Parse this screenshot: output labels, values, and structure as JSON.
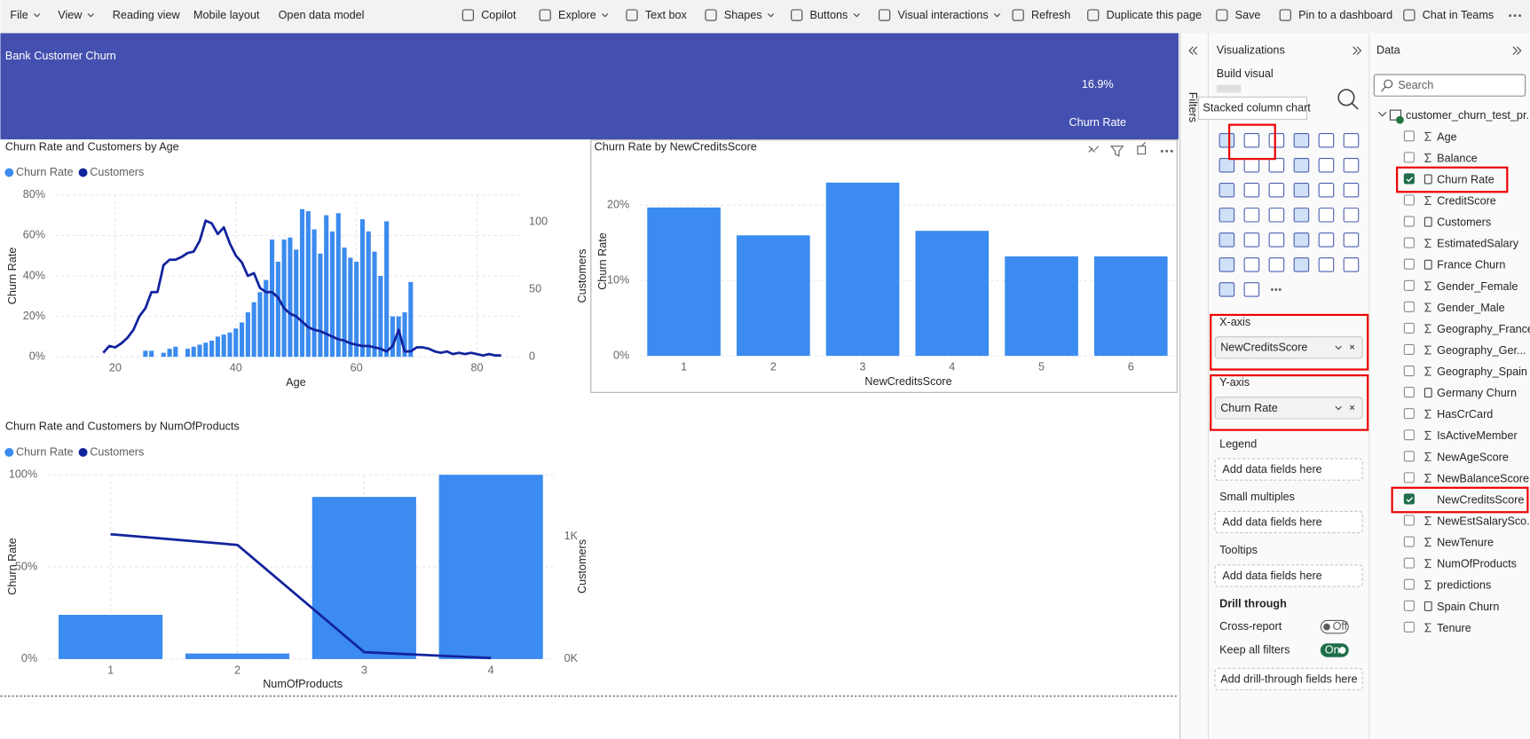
{
  "toolbar": [
    {
      "label": "File",
      "dropdown": true
    },
    {
      "label": "View",
      "dropdown": true
    },
    {
      "label": "Reading view",
      "dropdown": false
    },
    {
      "label": "Mobile layout",
      "dropdown": false
    },
    {
      "label": "Open data model",
      "dropdown": false
    },
    {
      "label": "Copilot",
      "dropdown": false
    },
    {
      "label": "Explore",
      "dropdown": true
    },
    {
      "label": "Text box",
      "dropdown": false
    },
    {
      "label": "Shapes",
      "dropdown": true
    },
    {
      "label": "Buttons",
      "dropdown": true
    },
    {
      "label": "Visual interactions",
      "dropdown": true
    },
    {
      "label": "Refresh",
      "dropdown": false
    },
    {
      "label": "Duplicate this page",
      "dropdown": false
    },
    {
      "label": "Save",
      "dropdown": false
    },
    {
      "label": "Pin to a dashboard",
      "dropdown": false
    },
    {
      "label": "Chat in Teams",
      "dropdown": false
    }
  ],
  "report": {
    "title": "Bank Customer Churn",
    "kpi": {
      "value": "16.9%",
      "label": "Churn Rate"
    }
  },
  "visuals": [
    {
      "type": "combo",
      "title": "Churn Rate and Customers by Age",
      "legend": true,
      "xgrid": true,
      "x": [
        18,
        19,
        20,
        21,
        22,
        23,
        24,
        25,
        26,
        27,
        28,
        29,
        30,
        31,
        32,
        33,
        34,
        35,
        36,
        37,
        38,
        39,
        40,
        41,
        42,
        43,
        44,
        45,
        46,
        47,
        48,
        49,
        50,
        51,
        52,
        53,
        54,
        55,
        56,
        57,
        58,
        59,
        60,
        61,
        62,
        63,
        64,
        65,
        66,
        67,
        68,
        69,
        70,
        71,
        72,
        73,
        74,
        75,
        76,
        77,
        78,
        79,
        80,
        81,
        82,
        83,
        84
      ],
      "xlim": [
        10,
        87
      ],
      "xticks": [
        20,
        40,
        60,
        80
      ],
      "ylim": [
        0,
        80
      ],
      "yticks": [
        {
          "value": 0,
          "label": "0%"
        },
        {
          "value": 20,
          "label": "20%"
        },
        {
          "value": 40,
          "label": "40%"
        },
        {
          "value": 60,
          "label": "60%"
        },
        {
          "value": 80,
          "label": "80%"
        }
      ],
      "y2lim": [
        0,
        120
      ],
      "y2ticks": [
        0,
        50,
        100
      ],
      "x_label": "Age",
      "y_label": "Churn Rate",
      "y2_label": "Customers",
      "series": [
        {
          "name": "Churn Rate",
          "color": "#3b8bf0",
          "type": "bar",
          "values": [
            null,
            null,
            null,
            null,
            null,
            null,
            null,
            3,
            3,
            null,
            2,
            4,
            5,
            null,
            4,
            5,
            6,
            7,
            8,
            10,
            11,
            12,
            14,
            17,
            22,
            27,
            32,
            38,
            58,
            47,
            58,
            59,
            53,
            73,
            72,
            63,
            51,
            70,
            62,
            71,
            54,
            49,
            47,
            68,
            62,
            52,
            40,
            67,
            20,
            20,
            22,
            37,
            null,
            null,
            null,
            null,
            null,
            null,
            null,
            null,
            null,
            null,
            null,
            null,
            null,
            null,
            null
          ]
        },
        {
          "name": "Customers",
          "color": "#12239e",
          "type": "line",
          "axis": "y2",
          "values": [
            3,
            8,
            7,
            10,
            14,
            20,
            30,
            36,
            48,
            48,
            68,
            72,
            72,
            74,
            77,
            78,
            86,
            101,
            99,
            91,
            96,
            84,
            75,
            70,
            60,
            62,
            51,
            48,
            48,
            44,
            36,
            32,
            30,
            26,
            22,
            20,
            19,
            17,
            15,
            13,
            12,
            10,
            9,
            8,
            8,
            7,
            6,
            4,
            8,
            20,
            4,
            4,
            7,
            7,
            6,
            4,
            3,
            4,
            2,
            3,
            2,
            3,
            2,
            1,
            2,
            1,
            1
          ]
        }
      ]
    },
    {
      "type": "bar",
      "title": "Churn Rate by NewCreditsScore",
      "categories": [
        "1",
        "2",
        "3",
        "4",
        "5",
        "6"
      ],
      "values": [
        19.7,
        16.0,
        23.0,
        16.6,
        13.2,
        13.2
      ],
      "color": "#3b8bf0",
      "ylim": [
        0,
        23.3
      ],
      "yticks": [
        {
          "value": 0,
          "label": "0%"
        },
        {
          "value": 10,
          "label": "10%"
        },
        {
          "value": 20,
          "label": "20%"
        }
      ],
      "x_label": "NewCreditsScore",
      "y_label": "Churn Rate"
    },
    {
      "type": "combo",
      "title": "Churn Rate and Customers by NumOfProducts",
      "legend": true,
      "xgrid": true,
      "categories": [
        "1",
        "2",
        "3",
        "4"
      ],
      "ylim": [
        0,
        100
      ],
      "yticks": [
        {
          "value": 0,
          "label": "0%"
        },
        {
          "value": 50,
          "label": "50%"
        },
        {
          "value": 100,
          "label": "100%"
        }
      ],
      "y2lim": [
        0,
        1500
      ],
      "y2ticks": [
        {
          "value": 0,
          "label": "0K"
        },
        {
          "value": 1000,
          "label": "1K"
        }
      ],
      "x_label": "NumOfProducts",
      "y_label": "Churn Rate",
      "y2_label": "Customers",
      "series": [
        {
          "name": "Churn Rate",
          "color": "#3b8bf0",
          "type": "bar",
          "values": [
            24,
            3,
            88,
            100
          ]
        },
        {
          "name": "Customers",
          "color": "#12239e",
          "type": "line",
          "axis": "y2",
          "values": [
            1016,
            929,
            56,
            8
          ]
        }
      ]
    }
  ],
  "filters_pane": {
    "label": "Filters"
  },
  "visualizations_pane": {
    "title": "Visualizations",
    "subtitle": "Build visual",
    "tooltip": "Stacked column chart",
    "wells": [
      {
        "label": "X-axis",
        "field": "NewCreditsScore",
        "highlighted": true
      },
      {
        "label": "Y-axis",
        "field": "Churn Rate",
        "highlighted": true
      },
      {
        "label": "Legend",
        "placeholder": "Add data fields here"
      },
      {
        "label": "Small multiples",
        "placeholder": "Add data fields here"
      },
      {
        "label": "Tooltips",
        "placeholder": "Add data fields here"
      }
    ],
    "drill_through": {
      "title": "Drill through",
      "cross_report": {
        "label": "Cross-report",
        "state": "Off"
      },
      "keep_filters": {
        "label": "Keep all filters",
        "state": "On"
      },
      "placeholder": "Add drill-through fields here"
    }
  },
  "data_pane": {
    "title": "Data",
    "search": "Search",
    "table": "customer_churn_test_pr...",
    "fields": [
      {
        "name": "Age",
        "kind": "sum",
        "checked": false
      },
      {
        "name": "Balance",
        "kind": "sum",
        "checked": false
      },
      {
        "name": "Churn Rate",
        "kind": "measure",
        "checked": true,
        "highlighted": true
      },
      {
        "name": "CreditScore",
        "kind": "sum",
        "checked": false
      },
      {
        "name": "Customers",
        "kind": "measure",
        "checked": false
      },
      {
        "name": "EstimatedSalary",
        "kind": "sum",
        "checked": false
      },
      {
        "name": "France Churn",
        "kind": "measure",
        "checked": false
      },
      {
        "name": "Gender_Female",
        "kind": "sum",
        "checked": false
      },
      {
        "name": "Gender_Male",
        "kind": "sum",
        "checked": false
      },
      {
        "name": "Geography_France",
        "kind": "sum",
        "checked": false
      },
      {
        "name": "Geography_Ger...",
        "kind": "sum",
        "checked": false
      },
      {
        "name": "Geography_Spain",
        "kind": "sum",
        "checked": false
      },
      {
        "name": "Germany Churn",
        "kind": "measure",
        "checked": false
      },
      {
        "name": "HasCrCard",
        "kind": "sum",
        "checked": false
      },
      {
        "name": "IsActiveMember",
        "kind": "sum",
        "checked": false
      },
      {
        "name": "NewAgeScore",
        "kind": "sum",
        "checked": false
      },
      {
        "name": "NewBalanceScore",
        "kind": "sum",
        "checked": false
      },
      {
        "name": "NewCreditsScore",
        "kind": "none",
        "checked": true,
        "highlighted": true
      },
      {
        "name": "NewEstSalarySco...",
        "kind": "sum",
        "checked": false
      },
      {
        "name": "NewTenure",
        "kind": "sum",
        "checked": false
      },
      {
        "name": "NumOfProducts",
        "kind": "sum",
        "checked": false
      },
      {
        "name": "predictions",
        "kind": "sum",
        "checked": false
      },
      {
        "name": "Spain Churn",
        "kind": "measure",
        "checked": false
      },
      {
        "name": "Tenure",
        "kind": "sum",
        "checked": false
      }
    ]
  }
}
